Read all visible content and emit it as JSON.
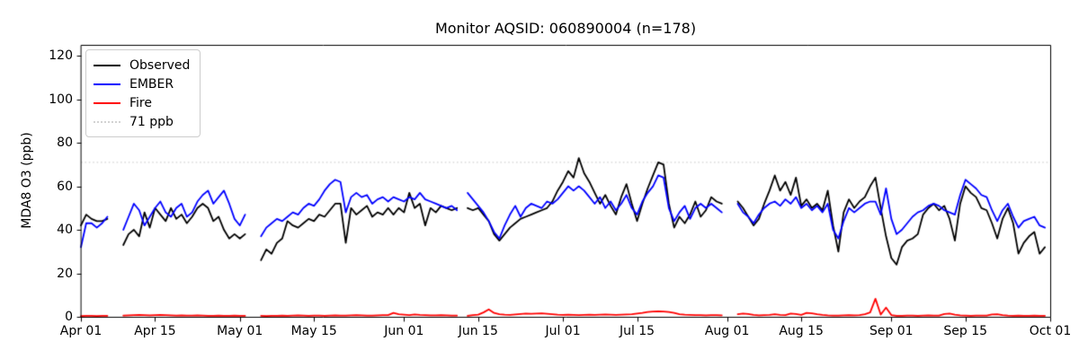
{
  "chart_data": {
    "type": "line",
    "title": "Monitor AQSID: 060890004 (n=178)",
    "xlabel": "",
    "ylabel": "MDA8 O3 (ppb)",
    "ylim": [
      0,
      125
    ],
    "y_ticks": [
      0,
      20,
      40,
      60,
      80,
      100,
      120
    ],
    "x_start_date": "Apr 01",
    "x_end_date": "Oct 01",
    "frequency": "daily",
    "x_total_days": 183,
    "x_tick_labels": [
      "Apr 01",
      "Apr 15",
      "May 01",
      "May 15",
      "Jun 01",
      "Jun 15",
      "Jul 01",
      "Jul 15",
      "Aug 01",
      "Aug 15",
      "Sep 01",
      "Sep 15",
      "Oct 01"
    ],
    "x_tick_days": [
      0,
      14,
      30,
      44,
      61,
      75,
      91,
      105,
      122,
      136,
      153,
      167,
      183
    ],
    "grid": false,
    "legend_position": "upper left",
    "threshold": {
      "label": "71 ppb",
      "value": 71,
      "color": "#d3d3d3",
      "style": "dotted"
    },
    "series": [
      {
        "name": "Observed",
        "color": "#000000",
        "style": "solid",
        "values": [
          42,
          47,
          45,
          44,
          44,
          45,
          null,
          null,
          33,
          38,
          40,
          37,
          48,
          41,
          50,
          47,
          44,
          50,
          45,
          47,
          43,
          46,
          50,
          52,
          50,
          44,
          46,
          40,
          36,
          38,
          36,
          38,
          null,
          null,
          26,
          31,
          29,
          34,
          36,
          44,
          42,
          41,
          43,
          45,
          44,
          47,
          46,
          49,
          52,
          52,
          34,
          50,
          47,
          49,
          51,
          46,
          48,
          47,
          50,
          47,
          50,
          48,
          57,
          50,
          52,
          42,
          50,
          48,
          51,
          50,
          49,
          50,
          null,
          50,
          49,
          50,
          47,
          44,
          38,
          35,
          38,
          41,
          43,
          45,
          46,
          47,
          48,
          49,
          50,
          53,
          58,
          62,
          67,
          64,
          73,
          66,
          62,
          57,
          52,
          56,
          51,
          47,
          55,
          61,
          52,
          44,
          52,
          59,
          65,
          71,
          70,
          52,
          41,
          46,
          43,
          47,
          53,
          46,
          49,
          55,
          53,
          52,
          null,
          null,
          53,
          50,
          46,
          42,
          45,
          52,
          58,
          65,
          58,
          62,
          56,
          64,
          51,
          54,
          50,
          52,
          49,
          58,
          42,
          30,
          48,
          54,
          50,
          53,
          55,
          60,
          64,
          50,
          37,
          27,
          24,
          32,
          35,
          36,
          38,
          47,
          50,
          52,
          49,
          51,
          45,
          35,
          52,
          60,
          57,
          55,
          50,
          49,
          43,
          36,
          45,
          50,
          43,
          29,
          34,
          37,
          39,
          29,
          32
        ]
      },
      {
        "name": "EMBER",
        "color": "#0000ff",
        "style": "solid",
        "values": [
          32,
          43,
          43,
          41,
          43,
          46,
          null,
          null,
          40,
          46,
          52,
          49,
          42,
          46,
          50,
          53,
          48,
          46,
          50,
          52,
          46,
          48,
          53,
          56,
          58,
          52,
          55,
          58,
          52,
          45,
          42,
          47,
          null,
          null,
          37,
          41,
          43,
          45,
          44,
          46,
          48,
          47,
          50,
          52,
          51,
          54,
          58,
          61,
          63,
          62,
          48,
          55,
          57,
          55,
          56,
          52,
          54,
          55,
          53,
          55,
          54,
          53,
          55,
          54,
          57,
          54,
          53,
          52,
          51,
          50,
          51,
          49,
          null,
          57,
          54,
          51,
          48,
          44,
          39,
          36,
          42,
          47,
          51,
          46,
          50,
          52,
          51,
          50,
          53,
          52,
          54,
          57,
          60,
          58,
          60,
          58,
          55,
          52,
          55,
          50,
          53,
          49,
          52,
          56,
          50,
          47,
          53,
          57,
          60,
          65,
          64,
          50,
          44,
          48,
          51,
          45,
          50,
          52,
          50,
          52,
          50,
          48,
          null,
          null,
          52,
          48,
          46,
          43,
          47,
          50,
          52,
          53,
          51,
          54,
          52,
          55,
          50,
          52,
          49,
          51,
          48,
          52,
          40,
          36,
          44,
          50,
          48,
          50,
          52,
          53,
          53,
          47,
          59,
          45,
          38,
          40,
          43,
          46,
          48,
          49,
          51,
          52,
          51,
          49,
          48,
          47,
          56,
          63,
          61,
          59,
          56,
          55,
          49,
          44,
          49,
          52,
          46,
          41,
          44,
          45,
          46,
          42,
          41
        ]
      },
      {
        "name": "Fire",
        "color": "#ff0000",
        "style": "solid",
        "values": [
          0.4,
          0.5,
          0.5,
          0.4,
          0.5,
          0.5,
          null,
          null,
          0.6,
          0.7,
          0.8,
          0.9,
          0.8,
          0.7,
          0.8,
          0.9,
          0.8,
          0.7,
          0.6,
          0.7,
          0.6,
          0.6,
          0.7,
          0.6,
          0.5,
          0.5,
          0.6,
          0.5,
          0.5,
          0.6,
          0.5,
          0.5,
          null,
          null,
          0.5,
          0.4,
          0.5,
          0.5,
          0.6,
          0.5,
          0.6,
          0.7,
          0.6,
          0.5,
          0.6,
          0.6,
          0.5,
          0.6,
          0.7,
          0.6,
          0.6,
          0.7,
          0.8,
          0.7,
          0.6,
          0.6,
          0.7,
          0.8,
          0.8,
          1.8,
          1.2,
          1.0,
          0.8,
          1.1,
          0.9,
          0.8,
          0.7,
          0.7,
          0.8,
          0.7,
          0.6,
          0.6,
          null,
          0.5,
          0.8,
          1.0,
          2.0,
          3.4,
          1.8,
          1.2,
          1.0,
          0.9,
          1.1,
          1.3,
          1.5,
          1.4,
          1.5,
          1.6,
          1.4,
          1.2,
          1.0,
          0.9,
          1.0,
          0.9,
          0.8,
          0.9,
          1.0,
          0.9,
          1.0,
          1.1,
          1.0,
          0.9,
          1.0,
          1.1,
          1.2,
          1.5,
          1.8,
          2.2,
          2.4,
          2.5,
          2.4,
          2.2,
          1.8,
          1.2,
          1.0,
          0.9,
          0.8,
          0.8,
          0.7,
          0.8,
          0.8,
          0.7,
          null,
          null,
          1.2,
          1.5,
          1.3,
          0.9,
          0.7,
          0.8,
          0.9,
          1.2,
          0.9,
          0.8,
          1.5,
          1.3,
          0.9,
          1.8,
          1.6,
          1.2,
          0.9,
          0.7,
          0.6,
          0.6,
          0.7,
          0.8,
          0.7,
          0.8,
          1.2,
          2.0,
          8.3,
          1.0,
          4.2,
          0.8,
          0.5,
          0.5,
          0.6,
          0.6,
          0.5,
          0.6,
          0.7,
          0.6,
          0.6,
          1.3,
          1.5,
          1.0,
          0.7,
          0.6,
          0.5,
          0.6,
          0.6,
          0.6,
          1.1,
          1.2,
          0.8,
          0.6,
          0.5,
          0.6,
          0.5,
          0.5,
          0.6,
          0.5,
          0.5
        ]
      }
    ]
  },
  "legend": {
    "items": [
      {
        "label": "Observed",
        "color": "#000000",
        "style": "solid"
      },
      {
        "label": "EMBER",
        "color": "#0000ff",
        "style": "solid"
      },
      {
        "label": "Fire",
        "color": "#ff0000",
        "style": "solid"
      },
      {
        "label": "71 ppb",
        "color": "#d3d3d3",
        "style": "dotted"
      }
    ]
  },
  "colors": {
    "background": "#ffffff",
    "axis": "#000000",
    "observed": "#000000",
    "ember": "#0000ff",
    "fire": "#ff0000",
    "threshold": "#d3d3d3"
  }
}
